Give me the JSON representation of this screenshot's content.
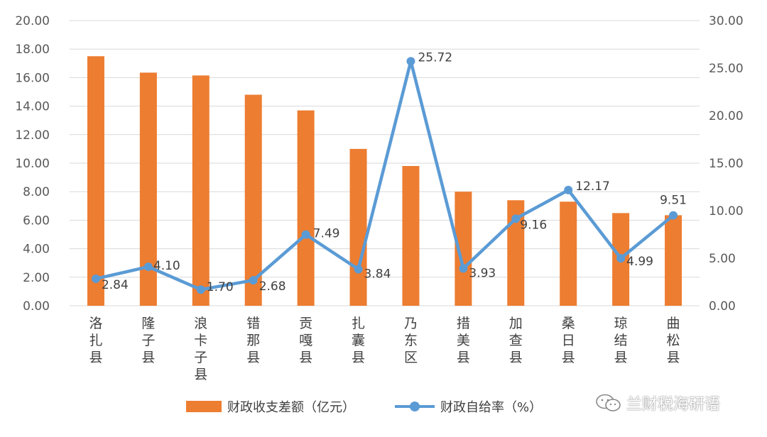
{
  "chart_data": {
    "type": "bar+line",
    "categories": [
      "洛扎县",
      "隆子县",
      "浪卡子县",
      "错那县",
      "贡嘎县",
      "扎囊县",
      "乃东区",
      "措美县",
      "加查县",
      "桑日县",
      "琼结县",
      "曲松县"
    ],
    "series": [
      {
        "name": "财政收支差额（亿元）",
        "type": "bar",
        "axis": "left",
        "color": "#ED7D31",
        "values": [
          17.5,
          16.35,
          16.15,
          14.8,
          13.7,
          11.0,
          9.8,
          8.0,
          7.4,
          7.3,
          6.5,
          6.35
        ]
      },
      {
        "name": "财政自给率（%）",
        "type": "line",
        "axis": "right",
        "color": "#5B9BD5",
        "values": [
          2.84,
          4.1,
          1.7,
          2.68,
          7.49,
          3.84,
          25.72,
          3.93,
          9.16,
          12.17,
          4.99,
          9.51
        ],
        "labels": [
          "2.84",
          "4.10",
          "1.70",
          "2.68",
          "7.49",
          "3.84",
          "25.72",
          "3.93",
          "9.16",
          "12.17",
          "4.99",
          "9.51"
        ]
      }
    ],
    "y_left": {
      "min": 0,
      "max": 20,
      "ticks": [
        "0.00",
        "2.00",
        "4.00",
        "6.00",
        "8.00",
        "10.00",
        "12.00",
        "14.00",
        "16.00",
        "18.00",
        "20.00"
      ]
    },
    "y_right": {
      "min": 0,
      "max": 30,
      "ticks": [
        "0.00",
        "5.00",
        "10.00",
        "15.00",
        "20.00",
        "25.00",
        "30.00"
      ]
    },
    "grid": true,
    "legend_position": "bottom"
  },
  "watermark": {
    "text": "兰财税海研语",
    "icon": "wechat-icon"
  }
}
